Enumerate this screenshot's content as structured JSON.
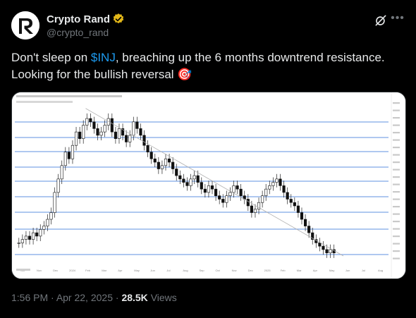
{
  "author": {
    "display_name": "Crypto Rand",
    "handle": "@crypto_rand",
    "verified_badge_color": "#e2b719",
    "avatar_letter": "R"
  },
  "header_icons": [
    "grok-icon",
    "more-icon"
  ],
  "tweet": {
    "text_before": "Don't sleep on ",
    "cashtag": "$INJ",
    "text_after": ", breaching up the 6 months downtrend resistance. Looking for the bullish reversal ",
    "emoji": "🎯"
  },
  "meta": {
    "time": "1:56 PM",
    "separator": " · ",
    "date": "Apr 22, 2025",
    "views_count": "28.5K",
    "views_label": "Views"
  },
  "chart_data": {
    "type": "candlestick",
    "title": "",
    "xlabel": "",
    "ylabel": "",
    "x_ticks": [
      "Oct",
      "Nov",
      "Dec",
      "2024",
      "Feb",
      "Mar",
      "Apr",
      "May",
      "Jun",
      "Jul",
      "Aug",
      "Sep",
      "Oct",
      "Nov",
      "Dec",
      "2025",
      "Feb",
      "Mar",
      "Apr",
      "May",
      "Jun",
      "Jul",
      "Aug"
    ],
    "horizontal_levels_count": 10,
    "trendline": "downtrend resistance from Mar 2024 high",
    "close_series": [
      11,
      12,
      13,
      12,
      14,
      13,
      15,
      16,
      18,
      20,
      26,
      30,
      34,
      38,
      36,
      40,
      44,
      42,
      46,
      48,
      47,
      45,
      43,
      44,
      46,
      48,
      44,
      42,
      45,
      43,
      41,
      43,
      47,
      45,
      43,
      40,
      38,
      36,
      35,
      33,
      34,
      36,
      35,
      33,
      31,
      30,
      29,
      28,
      30,
      31,
      29,
      27,
      26,
      28,
      27,
      25,
      24,
      23,
      25,
      26,
      28,
      27,
      25,
      24,
      22,
      20,
      21,
      23,
      25,
      27,
      28,
      29,
      30,
      28,
      26,
      24,
      23,
      22,
      20,
      18,
      16,
      14,
      12,
      11,
      10,
      9,
      8,
      9,
      8
    ]
  },
  "colors": {
    "background": "#000000",
    "text": "#e7e9ea",
    "muted": "#71767b",
    "link": "#1d9bf0",
    "level_line": "#7fa7e8"
  }
}
